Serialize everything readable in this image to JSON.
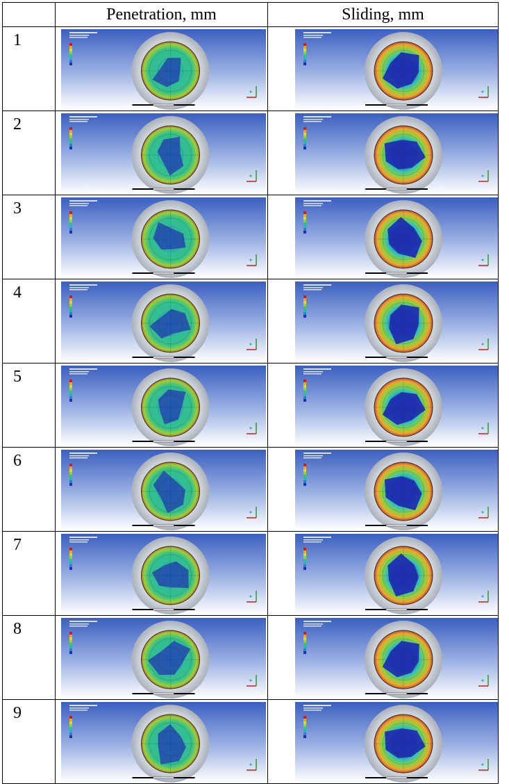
{
  "table": {
    "header": [
      "",
      "Penetration, mm",
      "Sliding, mm"
    ],
    "rows": [
      "1",
      "2",
      "3",
      "4",
      "5",
      "6",
      "7",
      "8",
      "9"
    ]
  }
}
